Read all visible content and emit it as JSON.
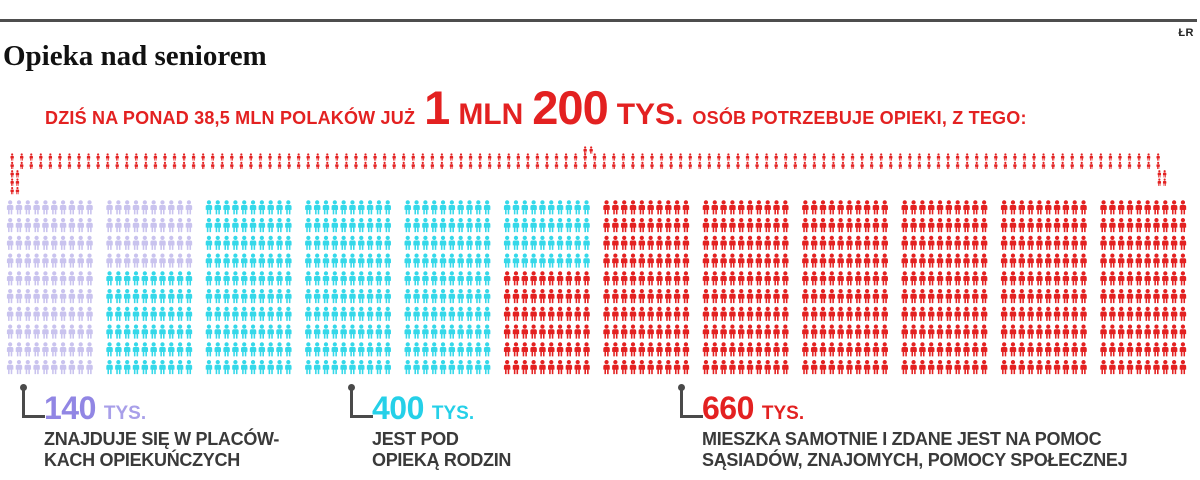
{
  "credit": "ŁR",
  "title": "Opieka nad seniorem",
  "headline": {
    "prefix": "DZIŚ NA PONAD 38,5 MLN POLAKÓW JUŻ",
    "big_number_1": "1",
    "big_unit_1": "MLN",
    "big_number_2": "200",
    "big_unit_2": "TYS.",
    "suffix": "OSÓB POTRZEBUJE OPIEKI, Z TEGO:",
    "color": "#e32121"
  },
  "chart_data": {
    "type": "pictogram",
    "title": "Opieka nad seniorem",
    "total_label": "1 mln 200 tys.",
    "total_value_tys": 1200,
    "icon_unit_tys": 1,
    "grid": {
      "blocks": 12,
      "block_cols": 10,
      "block_rows": 10,
      "icons_total": 1200
    },
    "brace_color": "#e32121",
    "segments": [
      {
        "name": "w placówkach opiekuńczych",
        "value_tys": 140,
        "label": "140",
        "unit": "TYS.",
        "icon_color": "#c9c3ee",
        "number_color": "#9186e4",
        "unit_color": "#a89fe9",
        "description_lines": [
          "ZNAJDUJE SIĘ W PLACÓW-",
          "KACH OPIEKUŃCZYCH"
        ]
      },
      {
        "name": "pod opieką rodzin",
        "value_tys": 400,
        "label": "400",
        "unit": "TYS.",
        "icon_color": "#35d8e9",
        "number_color": "#25d0e8",
        "unit_color": "#25d0e8",
        "description_lines": [
          "JEST POD",
          "OPIEKĄ RODZIN"
        ]
      },
      {
        "name": "mieszka samotnie",
        "value_tys": 660,
        "label": "660",
        "unit": "TYS.",
        "icon_color": "#e32121",
        "number_color": "#e32121",
        "unit_color": "#e32121",
        "description_lines": [
          "MIESZKA SAMOTNIE I ZDANE JEST NA POMOC",
          "SĄSIADÓW, ZNAJOMYCH, POMOCY SPOŁECZNEJ"
        ]
      }
    ]
  }
}
